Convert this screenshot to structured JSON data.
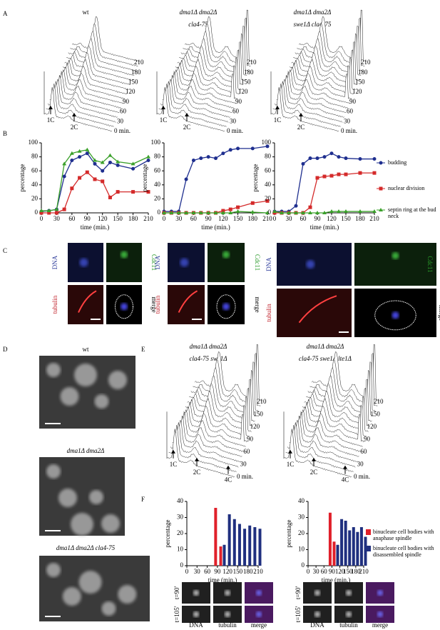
{
  "figure": {
    "panel_labels": [
      "A",
      "B",
      "C",
      "D",
      "E",
      "F"
    ],
    "A": {
      "plots": [
        {
          "title": [
            "wt"
          ],
          "time_labels": [
            "210",
            "180",
            "150",
            "120",
            "90",
            "60",
            "30",
            "0 min."
          ],
          "peaks": [
            "1C",
            "2C"
          ]
        },
        {
          "title": [
            "dma1Δ dma2Δ",
            "cla4-75"
          ],
          "time_labels": [
            "210",
            "180",
            "150",
            "120",
            "90",
            "60",
            "30",
            "0 min."
          ],
          "peaks": [
            "1C",
            "2C"
          ]
        },
        {
          "title": [
            "dma1Δ dma2Δ",
            "swe1Δ cla4-75"
          ],
          "time_labels": [
            "210",
            "180",
            "150",
            "120",
            "90",
            "60",
            "30",
            "0 min."
          ],
          "peaks": [
            "1C",
            "2C"
          ]
        }
      ]
    },
    "C": {
      "channels": [
        "DNA",
        "Cdc11",
        "tubulin",
        "merge"
      ]
    },
    "D": {
      "titles": [
        "wt",
        "dma1Δ dma2Δ",
        "dma1Δ dma2Δ cla4-75"
      ]
    },
    "E": {
      "plots": [
        {
          "title": [
            "dma1Δ dma2Δ",
            "cla4-75 swe1Δ"
          ],
          "time_labels": [
            "210",
            "150",
            "120",
            "90",
            "60",
            "30",
            "0 min."
          ],
          "peaks": [
            "1C",
            "2C",
            "4C"
          ]
        },
        {
          "title": [
            "dma1Δ dma2Δ",
            "cla4-75 swe1Δ lte1Δ"
          ],
          "time_labels": [
            "210",
            "150",
            "120",
            "90",
            "60",
            "30",
            "0 min."
          ],
          "peaks": [
            "1C",
            "2C",
            "4C"
          ]
        }
      ]
    },
    "F": {
      "times": [
        "t=90'",
        "t=105'"
      ],
      "channels": [
        "DNA",
        "tubulin",
        "merge"
      ]
    }
  },
  "chart_data": [
    {
      "type": "line",
      "x": [
        0,
        15,
        30,
        45,
        60,
        75,
        90,
        105,
        120,
        135,
        150,
        180,
        210
      ],
      "xlim": [
        0,
        210
      ],
      "ylim": [
        0,
        100
      ],
      "xticks": [
        0,
        30,
        60,
        90,
        120,
        150,
        180,
        210
      ],
      "yticks": [
        0,
        20,
        40,
        60,
        80,
        100
      ],
      "xlabel": "time (min.)",
      "ylabel": "percentage",
      "series": [
        {
          "name": "budding",
          "color": "#1f2f8f",
          "marker": "circle",
          "values": [
            2,
            3,
            5,
            52,
            75,
            80,
            85,
            70,
            60,
            72,
            68,
            63,
            75
          ]
        },
        {
          "name": "nuclear division",
          "color": "#d42a2a",
          "marker": "square",
          "values": [
            0,
            0,
            0,
            5,
            35,
            50,
            58,
            48,
            45,
            22,
            30,
            30,
            30
          ]
        },
        {
          "name": "septin ring at the bud neck",
          "color": "#3aa02a",
          "marker": "triangle",
          "values": [
            3,
            3,
            5,
            70,
            85,
            88,
            90,
            75,
            72,
            82,
            73,
            70,
            80
          ]
        }
      ]
    },
    {
      "type": "line",
      "x": [
        0,
        15,
        30,
        45,
        60,
        75,
        90,
        105,
        120,
        135,
        150,
        180,
        210
      ],
      "xlim": [
        0,
        210
      ],
      "ylim": [
        0,
        100
      ],
      "xticks": [
        0,
        30,
        60,
        90,
        120,
        150,
        180,
        210
      ],
      "yticks": [
        0,
        20,
        40,
        60,
        80,
        100
      ],
      "xlabel": "time (min.)",
      "ylabel": "percentage",
      "series": [
        {
          "name": "budding",
          "color": "#1f2f8f",
          "marker": "circle",
          "values": [
            2,
            2,
            2,
            48,
            75,
            78,
            80,
            78,
            85,
            90,
            92,
            92,
            95
          ]
        },
        {
          "name": "nuclear division",
          "color": "#d42a2a",
          "marker": "square",
          "values": [
            0,
            0,
            0,
            0,
            0,
            0,
            0,
            0,
            3,
            5,
            8,
            14,
            17
          ]
        },
        {
          "name": "septin ring at the bud neck",
          "color": "#3aa02a",
          "marker": "triangle",
          "values": [
            0,
            0,
            0,
            0,
            0,
            0,
            0,
            0,
            0,
            0,
            2,
            1,
            0
          ]
        }
      ]
    },
    {
      "type": "line",
      "x": [
        0,
        15,
        30,
        45,
        60,
        75,
        90,
        105,
        120,
        135,
        150,
        180,
        210
      ],
      "xlim": [
        0,
        210
      ],
      "ylim": [
        0,
        100
      ],
      "xticks": [
        0,
        30,
        60,
        90,
        120,
        150,
        180,
        210
      ],
      "yticks": [
        0,
        20,
        40,
        60,
        80,
        100
      ],
      "xlabel": "time (min.)",
      "ylabel": "percentage",
      "legend": "right",
      "series": [
        {
          "name": "budding",
          "color": "#1f2f8f",
          "marker": "circle",
          "values": [
            2,
            2,
            2,
            10,
            70,
            78,
            78,
            80,
            85,
            80,
            78,
            77,
            77
          ]
        },
        {
          "name": "nuclear division",
          "color": "#d42a2a",
          "marker": "square",
          "values": [
            0,
            0,
            0,
            0,
            0,
            8,
            50,
            52,
            53,
            55,
            55,
            57,
            57
          ]
        },
        {
          "name": "septin ring at the bud neck",
          "color": "#3aa02a",
          "marker": "triangle",
          "values": [
            2,
            0,
            0,
            0,
            0,
            0,
            0,
            0,
            2,
            2,
            2,
            2,
            2
          ]
        }
      ]
    },
    {
      "type": "bar",
      "x": [
        90,
        105,
        120,
        135,
        150,
        165,
        180,
        195,
        210
      ],
      "xlim": [
        0,
        210
      ],
      "ylim": [
        0,
        40
      ],
      "xticks": [
        0,
        30,
        60,
        90,
        120,
        150,
        180,
        210
      ],
      "yticks": [
        0,
        10,
        20,
        30,
        40
      ],
      "xlabel": "time (min.)",
      "ylabel": "percentage",
      "series": [
        {
          "name": "binucleate cell bodies with anaphase spindle",
          "color": "#e0202a",
          "values": [
            36,
            12,
            0,
            0,
            0,
            0,
            0,
            0,
            0
          ]
        },
        {
          "name": "binucleate cell bodies with disassembled spindle",
          "color": "#1f2f7f",
          "values": [
            0,
            13,
            32,
            29,
            26,
            23,
            25,
            24,
            23
          ]
        }
      ]
    },
    {
      "type": "bar",
      "x": [
        90,
        105,
        120,
        135,
        150,
        165,
        180,
        195,
        210
      ],
      "xlim": [
        0,
        210
      ],
      "ylim": [
        0,
        40
      ],
      "xticks": [
        0,
        30,
        60,
        90,
        120,
        150,
        180,
        210
      ],
      "yticks": [
        0,
        10,
        20,
        30,
        40
      ],
      "xlabel": "time (min.)",
      "ylabel": "percentage",
      "legend": "right",
      "series": [
        {
          "name": "binucleate cell bodies with anaphase spindle",
          "color": "#e0202a",
          "values": [
            33,
            15,
            0,
            0,
            0,
            0,
            0,
            0,
            0
          ]
        },
        {
          "name": "binucleate cell bodies with disassembled spindle",
          "color": "#1f2f7f",
          "values": [
            0,
            13,
            29,
            28,
            22,
            24,
            21,
            24,
            18
          ]
        }
      ]
    }
  ]
}
